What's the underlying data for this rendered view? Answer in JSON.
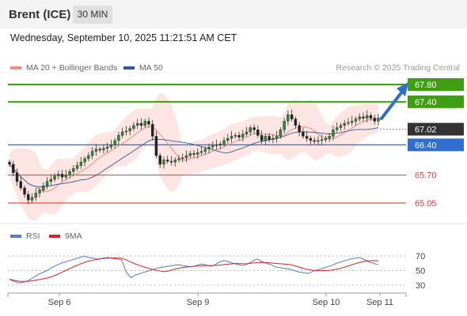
{
  "header": {
    "instrument": "Brent (ICE)",
    "timeframe": "30 MIN"
  },
  "datetime": "Wednesday, September 10, 2025 11:21:51 AM CET",
  "legend": [
    {
      "label": "MA 20 + Bollinger Bands",
      "color": "#f28b82"
    },
    {
      "label": "MA 50",
      "color": "#2c5a9a"
    }
  ],
  "research_note": "Research © 2025 Trading Central",
  "rsi_legend": [
    {
      "label": "RSI",
      "color": "#4f7bd9"
    },
    {
      "label": "9MA",
      "color": "#e02020"
    }
  ],
  "chart_data": {
    "type": "candlestick",
    "price_range": [
      64.95,
      67.98
    ],
    "levels": [
      {
        "label": "67.80",
        "value": 67.8,
        "kind": "resistance",
        "color": "#3f9f12"
      },
      {
        "label": "67.40",
        "value": 67.4,
        "kind": "resistance",
        "color": "#3f9f12"
      },
      {
        "label": "67.02",
        "value": 67.02,
        "kind": "last_price",
        "color": "#333333"
      },
      {
        "label": "66.40",
        "value": 66.4,
        "kind": "pivot",
        "color": "#2f6fd4"
      },
      {
        "label": "65.70",
        "value": 65.7,
        "kind": "support",
        "color": "#e05050"
      },
      {
        "label": "65.05",
        "value": 65.05,
        "kind": "support",
        "color": "#e05050"
      }
    ],
    "rsi_levels": {
      "labels": [
        "70",
        "50",
        "30"
      ],
      "values": [
        70,
        50,
        30
      ]
    },
    "x_labels": [
      "Sep 6",
      "Sep 9",
      "Sep 10",
      "Sep 11"
    ],
    "close": [
      65.95,
      65.75,
      65.55,
      65.4,
      65.25,
      65.12,
      65.18,
      65.28,
      65.35,
      65.45,
      65.55,
      65.6,
      65.68,
      65.72,
      65.65,
      65.7,
      65.78,
      65.85,
      65.92,
      66.0,
      66.08,
      66.15,
      66.25,
      66.3,
      66.28,
      66.32,
      66.35,
      66.4,
      66.5,
      66.62,
      66.7,
      66.72,
      66.78,
      66.85,
      66.9,
      66.85,
      66.95,
      66.88,
      66.6,
      66.15,
      65.95,
      66.05,
      66.02,
      66.0,
      66.05,
      66.08,
      66.1,
      66.15,
      66.2,
      66.18,
      66.22,
      66.25,
      66.3,
      66.35,
      66.38,
      66.4,
      66.42,
      66.5,
      66.55,
      66.6,
      66.62,
      66.58,
      66.65,
      66.7,
      66.8,
      66.75,
      66.62,
      66.5,
      66.6,
      66.52,
      66.55,
      66.6,
      66.75,
      66.95,
      67.1,
      67.0,
      66.85,
      66.7,
      66.6,
      66.55,
      66.5,
      66.48,
      66.5,
      66.52,
      66.55,
      66.6,
      66.75,
      66.8,
      66.85,
      66.9,
      66.92,
      66.95,
      67.0,
      67.05,
      67.02,
      67.08,
      67.02,
      66.95,
      67.02
    ],
    "rsi": [
      38,
      35,
      33,
      34,
      36,
      40,
      44,
      47,
      50,
      54,
      57,
      60,
      62,
      64,
      66,
      68,
      70,
      68,
      67,
      66,
      67,
      68,
      67,
      66,
      65,
      48,
      40,
      44,
      46,
      48,
      50,
      52,
      54,
      55,
      56,
      57,
      58,
      57,
      56,
      55,
      57,
      59,
      58,
      56,
      58,
      62,
      64,
      62,
      60,
      58,
      57,
      59,
      63,
      66,
      63,
      60,
      58,
      55,
      54,
      53,
      52,
      50,
      48,
      47,
      46,
      49,
      51,
      53,
      55,
      57,
      60,
      62,
      64,
      66,
      67,
      68,
      65,
      62,
      60,
      58
    ]
  }
}
